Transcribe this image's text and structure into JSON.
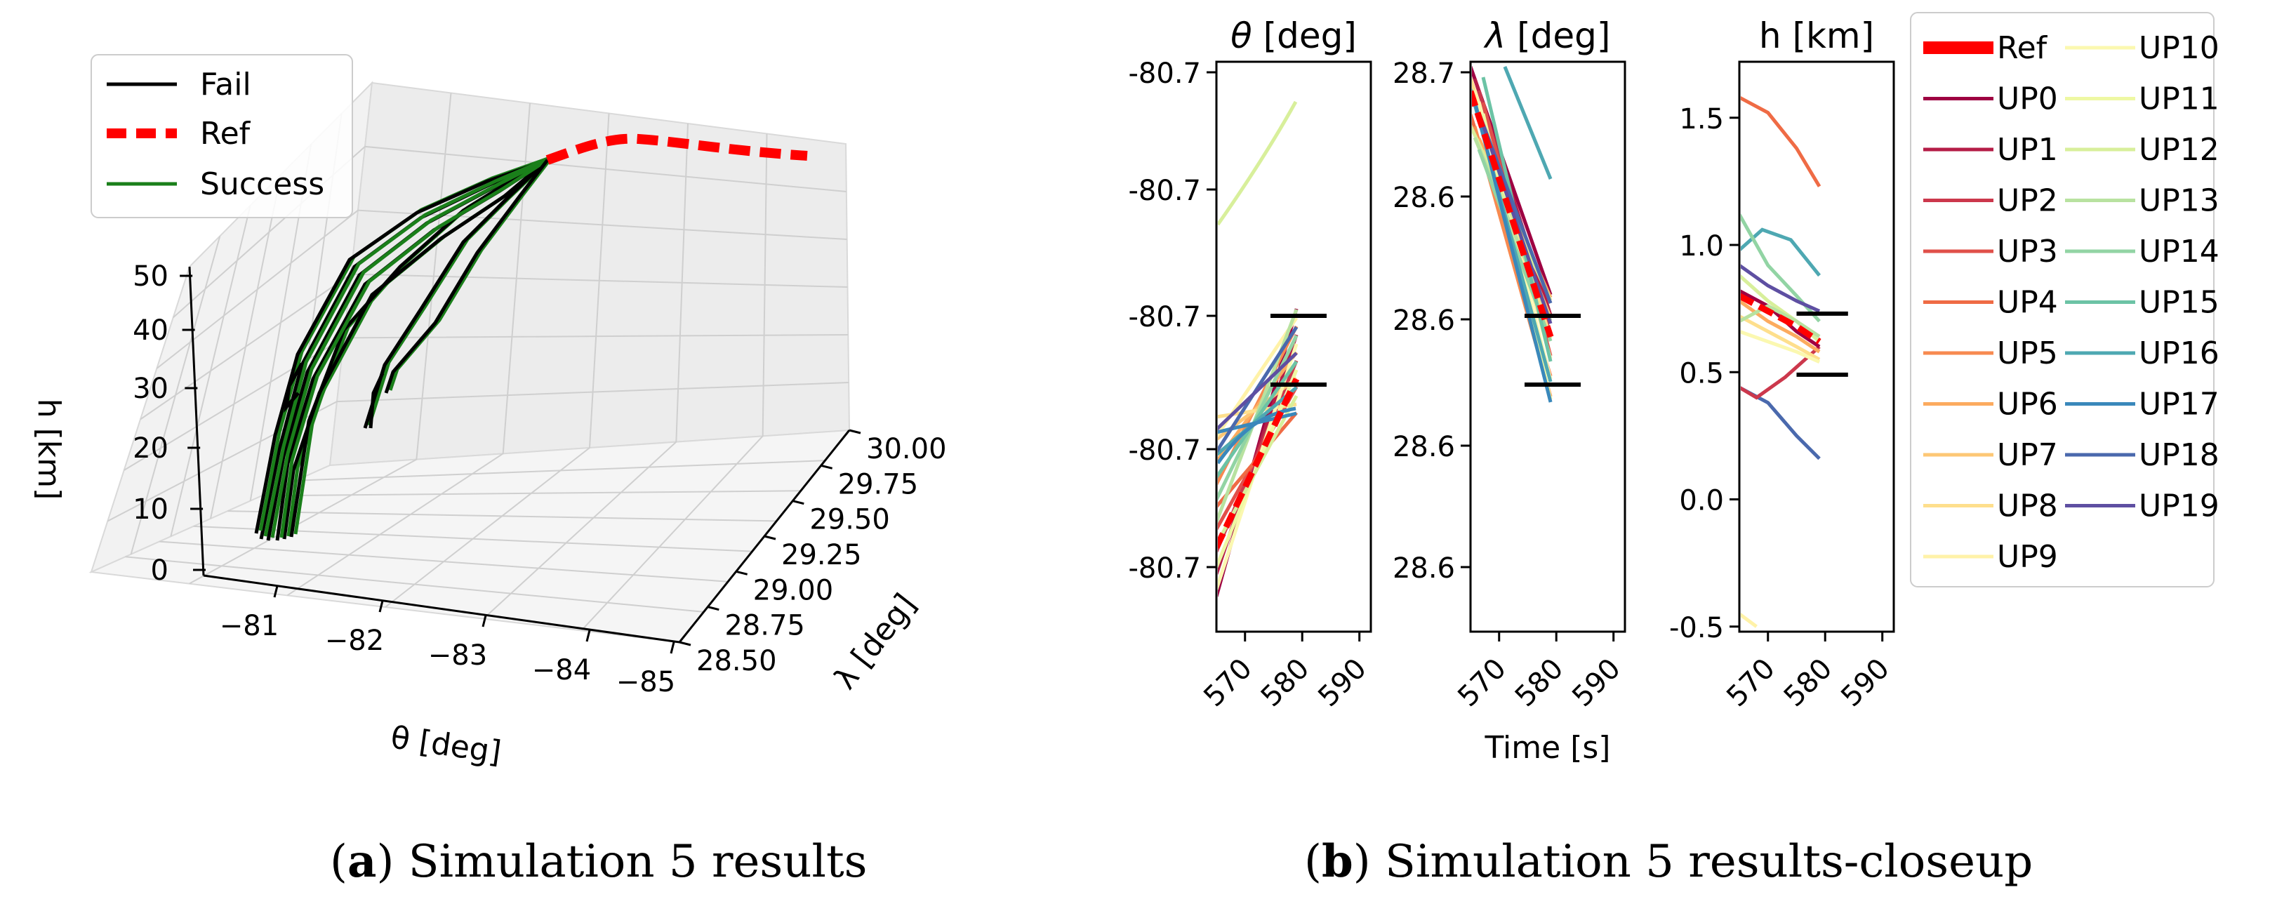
{
  "chart_data": [
    {
      "type": "line3d",
      "panel_id": "a",
      "xlabel": "θ [deg]",
      "ylabel": "λ [deg]",
      "zlabel": "h [km]",
      "x_ticks": [
        "−81",
        "−82",
        "−83",
        "−84",
        "−85"
      ],
      "y_ticks": [
        "28.50",
        "28.75",
        "29.00",
        "29.25",
        "29.50",
        "29.75",
        "30.00"
      ],
      "z_ticks": [
        "0",
        "10",
        "20",
        "30",
        "40",
        "50"
      ],
      "legend": [
        {
          "label": "Fail",
          "color": "#000000",
          "style": "solid"
        },
        {
          "label": "Ref",
          "color": "#ff0000",
          "style": "dashed"
        },
        {
          "label": "Success",
          "color": "#1a7f1a",
          "style": "solid"
        }
      ],
      "caption_label": "a",
      "caption_text": "Simulation 5 results"
    },
    {
      "type": "line",
      "panel_id": "b",
      "xlabel": "Time [s]",
      "x_ticks": [
        "570",
        "580",
        "590"
      ],
      "xlim": [
        565,
        592
      ],
      "subplots": [
        {
          "title_var": "θ",
          "title_unit": " [deg]",
          "y_ticks": [
            "-80.7",
            "-80.7",
            "-80.7",
            "-80.7",
            "-80.7"
          ]
        },
        {
          "title_var": "λ",
          "title_unit": " [deg]",
          "y_ticks": [
            "28.7",
            "28.6",
            "28.6",
            "28.6",
            "28.6"
          ]
        },
        {
          "title_var": "",
          "title_unit": "h [km]",
          "y_ticks": [
            "1.5",
            "1.0",
            "0.5",
            "0.0",
            "-0.5"
          ],
          "ylim": [
            -0.52,
            1.72
          ]
        }
      ],
      "h_markers_km": [
        0.73,
        0.49
      ],
      "legend_col1": [
        "Ref",
        "UP0",
        "UP1",
        "UP2",
        "UP3",
        "UP4",
        "UP5",
        "UP6",
        "UP7",
        "UP8",
        "UP9"
      ],
      "legend_col2": [
        "UP10",
        "UP11",
        "UP12",
        "UP13",
        "UP14",
        "UP15",
        "UP16",
        "UP17",
        "UP18",
        "UP19"
      ],
      "legend_colors": {
        "Ref": "#ff0000",
        "UP0": "#9e0142",
        "UP1": "#b51d47",
        "UP2": "#cc384c",
        "UP3": "#e0504a",
        "UP4": "#ef6b45",
        "UP5": "#f78a50",
        "UP6": "#fcab5f",
        "UP7": "#fdc775",
        "UP8": "#fedf8d",
        "UP9": "#fff2a8",
        "UP10": "#fbf8b0",
        "UP11": "#eef8a3",
        "UP12": "#d8ef9b",
        "UP13": "#b8e2a0",
        "UP14": "#92d4a4",
        "UP15": "#6cc3a5",
        "UP16": "#4ea8b2",
        "UP17": "#3a88bb",
        "UP18": "#4a69ad",
        "UP19": "#5e4fa2"
      },
      "caption_label": "b",
      "caption_text": "Simulation 5 results-closeup"
    }
  ]
}
